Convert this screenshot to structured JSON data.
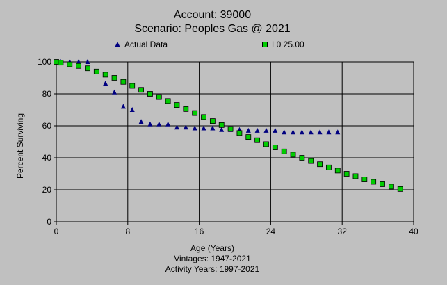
{
  "chart_data": {
    "type": "scatter",
    "title": "Account: 39000",
    "subtitle": "Scenario: Peoples Gas @ 2021",
    "xlabel": "Age (Years)",
    "ylabel": "Percent Surviving",
    "xlim": [
      0,
      40
    ],
    "ylim": [
      0,
      100
    ],
    "xticks": [
      "0",
      "8",
      "16",
      "24",
      "32",
      "40"
    ],
    "yticks": [
      "0",
      "20",
      "40",
      "60",
      "80",
      "100"
    ],
    "grid": true,
    "legend": "top",
    "footer": [
      "Vintages: 1947-2021",
      "Activity Years: 1997-2021"
    ],
    "series": [
      {
        "name": "Actual Data",
        "marker": "triangle",
        "color": "#000080",
        "x": [
          0,
          0.5,
          1.5,
          2.5,
          3.5,
          5.5,
          6.5,
          7.5,
          8.5,
          9.5,
          10.5,
          11.5,
          12.5,
          13.5,
          14.5,
          15.5,
          16.5,
          17.5,
          18.5,
          19.5,
          20.5,
          21.5,
          22.5,
          23.5,
          24.5,
          25.5,
          26.5,
          27.5,
          28.5,
          29.5,
          30.5,
          31.5
        ],
        "y": [
          100,
          100,
          100,
          100,
          100,
          86.5,
          81,
          72,
          70,
          62.5,
          61,
          61,
          61,
          59,
          59,
          58.5,
          58.5,
          58.5,
          57.5,
          57.5,
          57.5,
          57,
          57,
          57,
          57,
          56,
          56,
          56,
          56,
          56,
          56,
          56
        ]
      },
      {
        "name": "L0 25.00",
        "marker": "square",
        "color": "#00cc00",
        "x": [
          0,
          0.5,
          1.5,
          2.5,
          3.5,
          4.5,
          5.5,
          6.5,
          7.5,
          8.5,
          9.5,
          10.5,
          11.5,
          12.5,
          13.5,
          14.5,
          15.5,
          16.5,
          17.5,
          18.5,
          19.5,
          20.5,
          21.5,
          22.5,
          23.5,
          24.5,
          25.5,
          26.5,
          27.5,
          28.5,
          29.5,
          30.5,
          31.5,
          32.5,
          33.5,
          34.5,
          35.5,
          36.5,
          37.5,
          38.5
        ],
        "y": [
          100,
          99.5,
          98.5,
          97.5,
          96,
          94,
          92,
          90,
          87.5,
          85,
          82.5,
          80,
          78,
          75.5,
          73,
          70.5,
          68,
          65.5,
          63,
          60.5,
          58,
          55.5,
          53,
          51,
          48.5,
          46.5,
          44,
          42,
          40,
          38,
          36,
          34,
          32,
          30,
          28.5,
          26.5,
          25,
          23.5,
          22,
          20.5
        ]
      }
    ]
  }
}
